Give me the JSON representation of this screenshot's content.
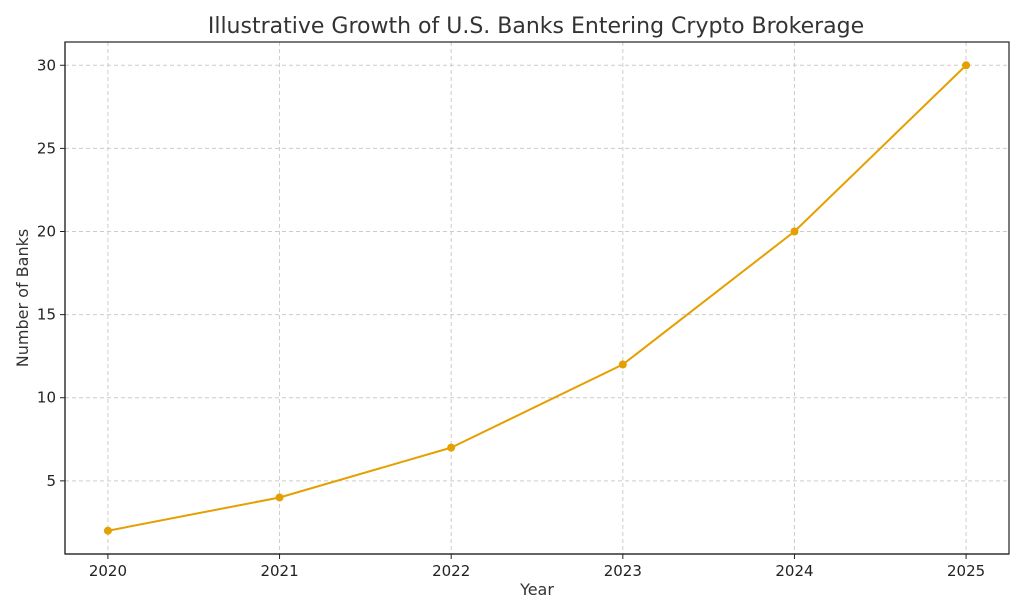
{
  "chart_data": {
    "type": "line",
    "title": "Illustrative Growth of U.S. Banks Entering Crypto Brokerage",
    "xlabel": "Year",
    "ylabel": "Number of Banks",
    "x": [
      2020,
      2021,
      2022,
      2023,
      2024,
      2025
    ],
    "series": [
      {
        "values": [
          2,
          4,
          7,
          12,
          20,
          30
        ],
        "color": "#E69F00",
        "marker": "circle"
      }
    ],
    "xlim": [
      2019.75,
      2025.25
    ],
    "ylim": [
      0.6,
      31.4
    ],
    "xticks": [
      2020,
      2021,
      2022,
      2023,
      2024,
      2025
    ],
    "yticks": [
      5,
      10,
      15,
      20,
      25,
      30
    ],
    "grid": true
  }
}
